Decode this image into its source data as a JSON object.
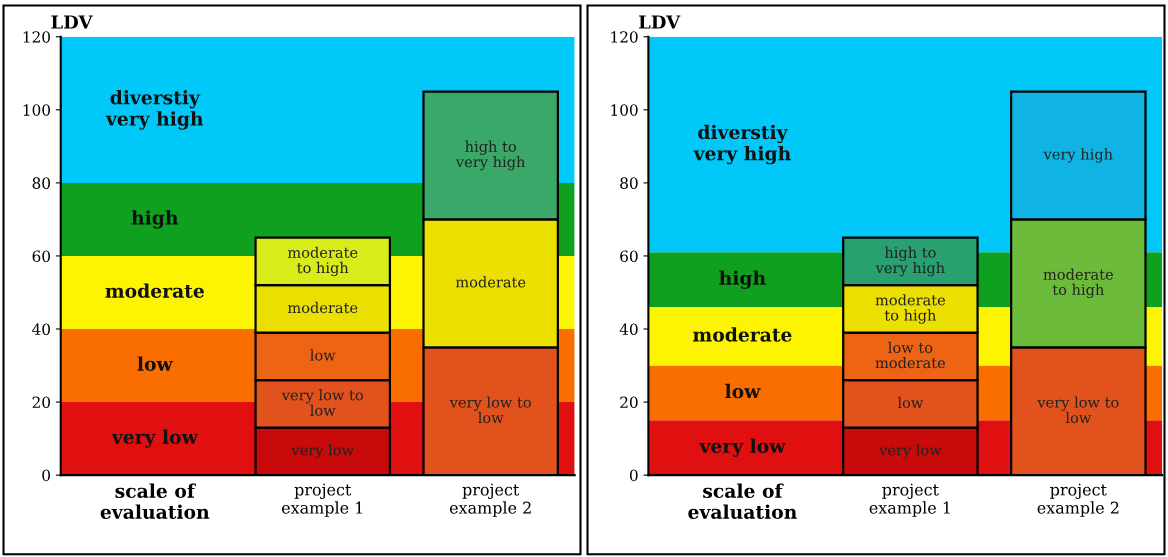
{
  "chart_data": [
    {
      "type": "bar",
      "stacked": true,
      "ylabel": "LDV",
      "categories": [
        "scale of\nevaluation",
        "project\nexample 1",
        "project\nexample 2"
      ],
      "ylim": [
        0,
        120
      ],
      "yticks": [
        0,
        20,
        40,
        60,
        80,
        100,
        120
      ],
      "grid": false,
      "legend": false,
      "bands": [
        {
          "axis": "y",
          "from": 0,
          "to": 20,
          "label": "very low",
          "color": "#e01010"
        },
        {
          "axis": "y",
          "from": 20,
          "to": 40,
          "label": "low",
          "color": "#fa6e00"
        },
        {
          "axis": "y",
          "from": 40,
          "to": 60,
          "label": "moderate",
          "color": "#fcf400"
        },
        {
          "axis": "y",
          "from": 60,
          "to": 80,
          "label": "high",
          "color": "#10a020"
        },
        {
          "axis": "y",
          "from": 80,
          "to": 120,
          "label": "diverstiy\nvery high",
          "color": "#00c8f8"
        }
      ],
      "series": [
        {
          "values": [
            null,
            13,
            35
          ],
          "colors": [
            "#c80a0a",
            "#c80a0a",
            "#e2521c"
          ],
          "value_labels": [
            null,
            "very low",
            "very low to\nlow"
          ]
        },
        {
          "values": [
            null,
            13,
            35
          ],
          "colors": [
            "#e2521c",
            "#e2521c",
            "#ece000"
          ],
          "value_labels": [
            null,
            "very low to\nlow",
            "moderate"
          ]
        },
        {
          "values": [
            null,
            13,
            35
          ],
          "colors": [
            "#ec6414",
            "#ec6414",
            "#3aa868"
          ],
          "value_labels": [
            null,
            "low",
            "high to\nvery high"
          ]
        },
        {
          "values": [
            null,
            13,
            null
          ],
          "colors": [
            "#ece000",
            "#ece000",
            "#ece000"
          ],
          "value_labels": [
            null,
            "moderate",
            null
          ]
        },
        {
          "values": [
            null,
            13,
            null
          ],
          "colors": [
            "#d8ec1c",
            "#d8ec1c",
            "#d8ec1c"
          ],
          "value_labels": [
            null,
            "moderate\nto high",
            null
          ]
        }
      ]
    },
    {
      "type": "bar",
      "stacked": true,
      "ylabel": "LDV",
      "categories": [
        "scale of\nevaluation",
        "project\nexample 1",
        "project\nexample 2"
      ],
      "ylim": [
        0,
        120
      ],
      "yticks": [
        0,
        20,
        40,
        60,
        80,
        100,
        120
      ],
      "grid": false,
      "legend": false,
      "bands": [
        {
          "axis": "y",
          "from": 0,
          "to": 15,
          "label": "very low",
          "color": "#e01010"
        },
        {
          "axis": "y",
          "from": 15,
          "to": 30,
          "label": "low",
          "color": "#fa6e00"
        },
        {
          "axis": "y",
          "from": 30,
          "to": 46,
          "label": "moderate",
          "color": "#fcf400"
        },
        {
          "axis": "y",
          "from": 46,
          "to": 61,
          "label": "high",
          "color": "#10a020"
        },
        {
          "axis": "y",
          "from": 61,
          "to": 120,
          "label": "diverstiy\nvery high",
          "color": "#00c8f8"
        }
      ],
      "series": [
        {
          "values": [
            null,
            13,
            35
          ],
          "colors": [
            "#c80a0a",
            "#c80a0a",
            "#e2521c"
          ],
          "value_labels": [
            null,
            "very low",
            "very low to\nlow"
          ]
        },
        {
          "values": [
            null,
            13,
            35
          ],
          "colors": [
            "#e2521c",
            "#e2521c",
            "#6dbb3a"
          ],
          "value_labels": [
            null,
            "low",
            "moderate\nto high"
          ]
        },
        {
          "values": [
            null,
            13,
            35
          ],
          "colors": [
            "#ec6414",
            "#ec6414",
            "#10b4e4"
          ],
          "value_labels": [
            null,
            "low to\nmoderate",
            "very high"
          ]
        },
        {
          "values": [
            null,
            13,
            null
          ],
          "colors": [
            "#ece000",
            "#ece000",
            "#ece000"
          ],
          "value_labels": [
            null,
            "moderate\nto high",
            null
          ]
        },
        {
          "values": [
            null,
            13,
            null
          ],
          "colors": [
            "#28a070",
            "#28a070",
            "#28a070"
          ],
          "value_labels": [
            null,
            "high to\nvery high",
            null
          ]
        }
      ]
    }
  ]
}
